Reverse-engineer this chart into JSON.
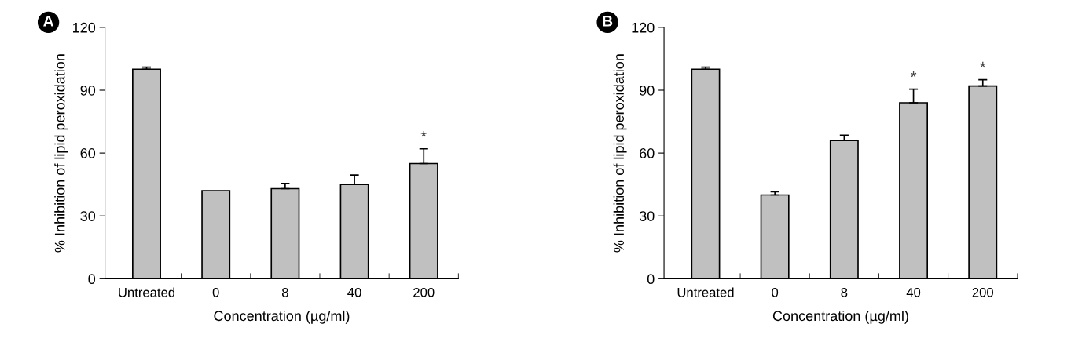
{
  "chart_data": [
    {
      "type": "bar",
      "title": "A",
      "xlabel": "Concentration (µg/ml)",
      "ylabel": "% Inhibition of lipid peroxidation",
      "categories": [
        "Untreated",
        "0",
        "8",
        "40",
        "200"
      ],
      "values": [
        100,
        42,
        43,
        45,
        55
      ],
      "errors": [
        [
          100,
          101
        ],
        null,
        [
          43,
          45.5
        ],
        [
          45,
          49.5
        ],
        [
          55,
          62
        ]
      ],
      "color": "#c0c0c0",
      "ylim": [
        0,
        120
      ],
      "yticks": [
        0,
        30,
        60,
        90,
        120
      ],
      "grid": false,
      "annotations": [
        {
          "text": "*",
          "x": "200",
          "y": 62
        }
      ]
    },
    {
      "type": "bar",
      "title": "B",
      "xlabel": "Concentration (µg/ml)",
      "ylabel": "% Inhibition of lipid peroxidation",
      "categories": [
        "Untreated",
        "0",
        "8",
        "40",
        "200"
      ],
      "values": [
        100,
        40,
        66,
        84,
        92
      ],
      "errors": [
        [
          100,
          101
        ],
        [
          40,
          41.5
        ],
        [
          66,
          68.5
        ],
        [
          84,
          90.5
        ],
        [
          92,
          95
        ]
      ],
      "color": "#c0c0c0",
      "ylim": [
        0,
        120
      ],
      "yticks": [
        0,
        30,
        60,
        90,
        120
      ],
      "grid": false,
      "annotations": [
        {
          "text": "*",
          "x": "40",
          "y": 90.5
        },
        {
          "text": "*",
          "x": "200",
          "y": 95
        }
      ]
    }
  ]
}
